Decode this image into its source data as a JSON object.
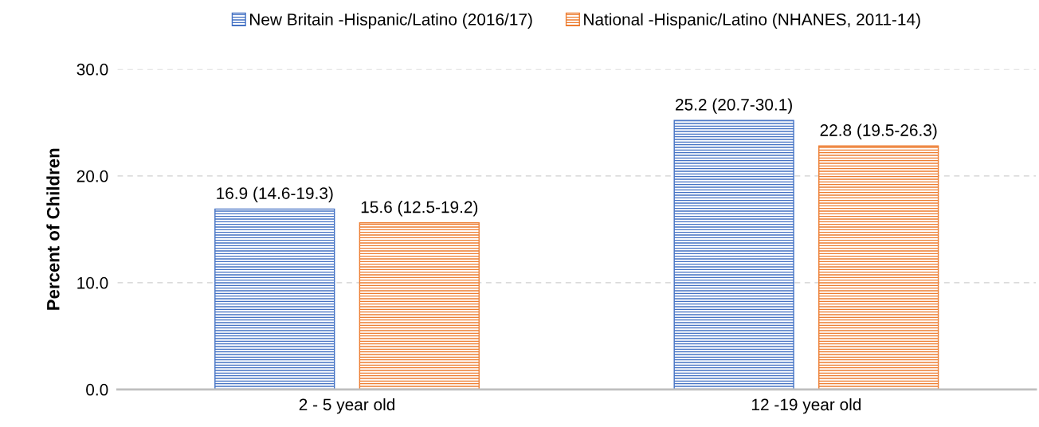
{
  "chart_data": {
    "type": "bar",
    "ylabel": "Percent of Children",
    "categories": [
      "2 - 5 year old",
      "12 -19 year old"
    ],
    "series": [
      {
        "name": "New Britain -Hispanic/Latino (2016/17)",
        "color": "#4472c4",
        "values": [
          16.9,
          25.2
        ],
        "value_labels": [
          "16.9 (14.6-19.3)",
          "25.2 (20.7-30.1)"
        ]
      },
      {
        "name": "National -Hispanic/Latino (NHANES, 2011-14)",
        "color": "#ed7d31",
        "values": [
          15.6,
          22.8
        ],
        "value_labels": [
          "15.6 (12.5-19.2)",
          "22.8 (19.5-26.3)"
        ]
      }
    ],
    "ylim": [
      0,
      30
    ],
    "yticks": [
      {
        "value": 0,
        "label": "0.0"
      },
      {
        "value": 10,
        "label": "10.0"
      },
      {
        "value": 20,
        "label": "20.0"
      },
      {
        "value": 30,
        "label": "30.0"
      }
    ],
    "grid": "y",
    "legend": "top"
  }
}
